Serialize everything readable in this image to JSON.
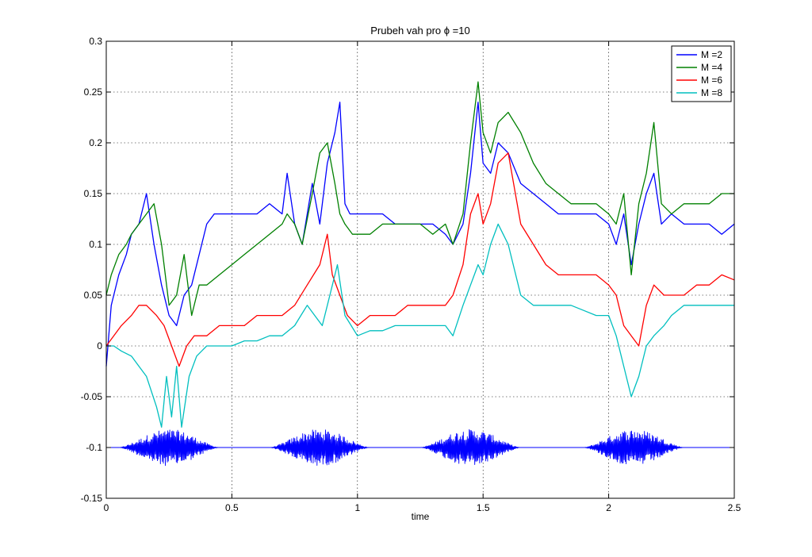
{
  "chart_data": {
    "type": "line",
    "title": "Prubeh vah pro ϕ =10",
    "xlabel": "time",
    "ylabel": "",
    "xlim": [
      0,
      2.5
    ],
    "ylim": [
      -0.15,
      0.3
    ],
    "xticks": [
      0,
      0.5,
      1,
      1.5,
      2,
      2.5
    ],
    "xtick_labels": [
      "0",
      "0.5",
      "1",
      "1.5",
      "2",
      "2.5"
    ],
    "yticks": [
      -0.15,
      -0.1,
      -0.05,
      0,
      0.05,
      0.1,
      0.15,
      0.2,
      0.25,
      0.3
    ],
    "ytick_labels": [
      "-0.15",
      "-0.1",
      "-0.05",
      "0",
      "0.05",
      "0.1",
      "0.15",
      "0.2",
      "0.25",
      "0.3"
    ],
    "grid": true,
    "legend_position": "top-right",
    "series": [
      {
        "name": "M =2",
        "color": "#0000ff",
        "x": [
          0,
          0.02,
          0.05,
          0.08,
          0.1,
          0.13,
          0.16,
          0.19,
          0.22,
          0.25,
          0.28,
          0.31,
          0.34,
          0.37,
          0.4,
          0.43,
          0.5,
          0.55,
          0.6,
          0.65,
          0.7,
          0.72,
          0.75,
          0.78,
          0.82,
          0.85,
          0.88,
          0.91,
          0.93,
          0.95,
          0.97,
          1.0,
          1.05,
          1.1,
          1.15,
          1.2,
          1.25,
          1.3,
          1.35,
          1.38,
          1.42,
          1.45,
          1.48,
          1.5,
          1.53,
          1.56,
          1.6,
          1.65,
          1.7,
          1.75,
          1.8,
          1.85,
          1.9,
          1.95,
          2.0,
          2.03,
          2.06,
          2.09,
          2.12,
          2.15,
          2.18,
          2.21,
          2.25,
          2.3,
          2.35,
          2.4,
          2.45,
          2.5
        ],
        "y": [
          -0.02,
          0.04,
          0.07,
          0.09,
          0.11,
          0.12,
          0.15,
          0.1,
          0.06,
          0.03,
          0.02,
          0.05,
          0.06,
          0.09,
          0.12,
          0.13,
          0.13,
          0.13,
          0.13,
          0.14,
          0.13,
          0.17,
          0.12,
          0.1,
          0.16,
          0.12,
          0.18,
          0.21,
          0.24,
          0.14,
          0.13,
          0.13,
          0.13,
          0.13,
          0.12,
          0.12,
          0.12,
          0.12,
          0.11,
          0.1,
          0.12,
          0.17,
          0.24,
          0.18,
          0.17,
          0.2,
          0.19,
          0.16,
          0.15,
          0.14,
          0.13,
          0.13,
          0.13,
          0.13,
          0.12,
          0.1,
          0.13,
          0.08,
          0.12,
          0.15,
          0.17,
          0.12,
          0.13,
          0.12,
          0.12,
          0.12,
          0.11,
          0.12
        ]
      },
      {
        "name": "M =4",
        "color": "#008000",
        "x": [
          0,
          0.02,
          0.05,
          0.08,
          0.1,
          0.13,
          0.16,
          0.19,
          0.22,
          0.25,
          0.28,
          0.31,
          0.34,
          0.37,
          0.4,
          0.45,
          0.5,
          0.55,
          0.6,
          0.65,
          0.7,
          0.72,
          0.75,
          0.78,
          0.82,
          0.85,
          0.88,
          0.91,
          0.93,
          0.95,
          0.98,
          1.0,
          1.05,
          1.1,
          1.15,
          1.2,
          1.25,
          1.3,
          1.35,
          1.38,
          1.42,
          1.45,
          1.48,
          1.5,
          1.53,
          1.56,
          1.6,
          1.65,
          1.7,
          1.75,
          1.8,
          1.85,
          1.9,
          1.95,
          2.0,
          2.03,
          2.06,
          2.09,
          2.12,
          2.15,
          2.18,
          2.21,
          2.25,
          2.3,
          2.35,
          2.4,
          2.45,
          2.5
        ],
        "y": [
          0.05,
          0.07,
          0.09,
          0.1,
          0.11,
          0.12,
          0.13,
          0.14,
          0.1,
          0.04,
          0.05,
          0.09,
          0.03,
          0.06,
          0.06,
          0.07,
          0.08,
          0.09,
          0.1,
          0.11,
          0.12,
          0.13,
          0.12,
          0.1,
          0.15,
          0.19,
          0.2,
          0.16,
          0.13,
          0.12,
          0.11,
          0.11,
          0.11,
          0.12,
          0.12,
          0.12,
          0.12,
          0.11,
          0.12,
          0.1,
          0.13,
          0.2,
          0.26,
          0.21,
          0.19,
          0.22,
          0.23,
          0.21,
          0.18,
          0.16,
          0.15,
          0.14,
          0.14,
          0.14,
          0.13,
          0.12,
          0.15,
          0.07,
          0.14,
          0.17,
          0.22,
          0.14,
          0.13,
          0.14,
          0.14,
          0.14,
          0.15,
          0.15
        ]
      },
      {
        "name": "M =6",
        "color": "#ff0000",
        "x": [
          0,
          0.03,
          0.06,
          0.1,
          0.13,
          0.16,
          0.2,
          0.23,
          0.26,
          0.29,
          0.32,
          0.35,
          0.4,
          0.45,
          0.5,
          0.55,
          0.6,
          0.65,
          0.7,
          0.75,
          0.8,
          0.85,
          0.88,
          0.9,
          0.93,
          0.96,
          1.0,
          1.05,
          1.1,
          1.15,
          1.2,
          1.25,
          1.3,
          1.35,
          1.38,
          1.42,
          1.45,
          1.48,
          1.5,
          1.53,
          1.56,
          1.6,
          1.65,
          1.7,
          1.75,
          1.8,
          1.85,
          1.9,
          1.95,
          2.0,
          2.03,
          2.06,
          2.09,
          2.12,
          2.15,
          2.18,
          2.22,
          2.25,
          2.3,
          2.35,
          2.4,
          2.45,
          2.5
        ],
        "y": [
          0.0,
          0.01,
          0.02,
          0.03,
          0.04,
          0.04,
          0.03,
          0.02,
          0.0,
          -0.02,
          0.0,
          0.01,
          0.01,
          0.02,
          0.02,
          0.02,
          0.03,
          0.03,
          0.03,
          0.04,
          0.06,
          0.08,
          0.11,
          0.07,
          0.05,
          0.03,
          0.02,
          0.03,
          0.03,
          0.03,
          0.04,
          0.04,
          0.04,
          0.04,
          0.05,
          0.08,
          0.13,
          0.15,
          0.12,
          0.14,
          0.18,
          0.19,
          0.12,
          0.1,
          0.08,
          0.07,
          0.07,
          0.07,
          0.07,
          0.06,
          0.05,
          0.02,
          0.01,
          0.0,
          0.04,
          0.06,
          0.05,
          0.05,
          0.05,
          0.06,
          0.06,
          0.07,
          0.065
        ]
      },
      {
        "name": "M =8",
        "color": "#00bfbf",
        "x": [
          0,
          0.03,
          0.06,
          0.1,
          0.13,
          0.16,
          0.2,
          0.22,
          0.24,
          0.26,
          0.28,
          0.3,
          0.33,
          0.36,
          0.4,
          0.45,
          0.5,
          0.55,
          0.6,
          0.65,
          0.7,
          0.75,
          0.8,
          0.83,
          0.86,
          0.89,
          0.92,
          0.95,
          1.0,
          1.05,
          1.1,
          1.15,
          1.2,
          1.25,
          1.3,
          1.35,
          1.38,
          1.42,
          1.45,
          1.48,
          1.5,
          1.53,
          1.56,
          1.6,
          1.65,
          1.7,
          1.75,
          1.8,
          1.85,
          1.9,
          1.95,
          2.0,
          2.03,
          2.06,
          2.09,
          2.12,
          2.15,
          2.18,
          2.22,
          2.25,
          2.3,
          2.35,
          2.4,
          2.45,
          2.5
        ],
        "y": [
          0.0,
          0.0,
          -0.005,
          -0.01,
          -0.02,
          -0.03,
          -0.06,
          -0.08,
          -0.03,
          -0.07,
          -0.02,
          -0.08,
          -0.03,
          -0.01,
          0.0,
          0.0,
          0.0,
          0.005,
          0.005,
          0.01,
          0.01,
          0.02,
          0.04,
          0.03,
          0.02,
          0.05,
          0.08,
          0.03,
          0.01,
          0.015,
          0.015,
          0.02,
          0.02,
          0.02,
          0.02,
          0.02,
          0.01,
          0.04,
          0.06,
          0.08,
          0.07,
          0.1,
          0.12,
          0.1,
          0.05,
          0.04,
          0.04,
          0.04,
          0.04,
          0.035,
          0.03,
          0.03,
          0.01,
          -0.02,
          -0.05,
          -0.03,
          0.0,
          0.01,
          0.02,
          0.03,
          0.04,
          0.04,
          0.04,
          0.04,
          0.04
        ]
      },
      {
        "name": "",
        "color": "#0000ff",
        "x": [
          0,
          2.5
        ],
        "y": [
          -0.1,
          -0.1
        ],
        "bursts": [
          {
            "from": 0.05,
            "to": 0.45,
            "amplitude": 0.018
          },
          {
            "from": 0.65,
            "to": 1.05,
            "amplitude": 0.018
          },
          {
            "from": 1.25,
            "to": 1.65,
            "amplitude": 0.018
          },
          {
            "from": 1.9,
            "to": 2.3,
            "amplitude": 0.018
          }
        ]
      }
    ]
  }
}
